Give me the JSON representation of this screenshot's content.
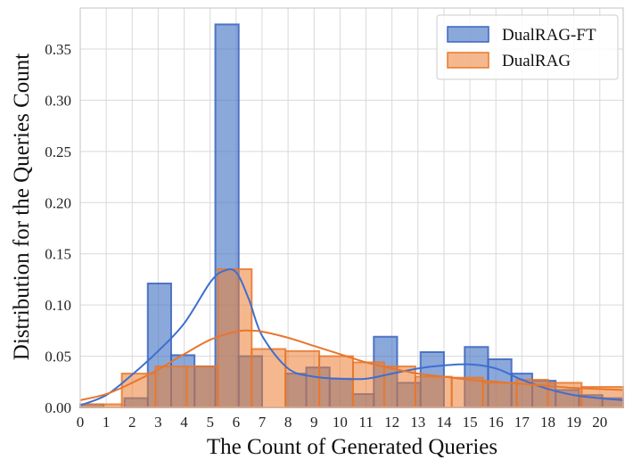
{
  "chart_data": {
    "type": "histogram",
    "xlabel": "The Count of Generated Queries",
    "ylabel": "Distribution for the Queries Count",
    "xlim": [
      0,
      20.9
    ],
    "ylim": [
      0,
      0.39
    ],
    "x_ticks": [
      0,
      1,
      2,
      3,
      4,
      5,
      6,
      7,
      8,
      9,
      10,
      11,
      12,
      13,
      14,
      15,
      16,
      17,
      18,
      19,
      20
    ],
    "x_tick_labels": [
      "0",
      "1",
      "2",
      "3",
      "4",
      "5",
      "6",
      "7",
      "8",
      "9",
      "10",
      "11",
      "12",
      "13",
      "14",
      "15",
      "16",
      "17",
      "18",
      "19",
      "20"
    ],
    "y_ticks": [
      0,
      0.05,
      0.1,
      0.15,
      0.2,
      0.25,
      0.3,
      0.35
    ],
    "y_tick_labels": [
      "0.00",
      "0.05",
      "0.10",
      "0.15",
      "0.20",
      "0.25",
      "0.30",
      "0.35"
    ],
    "grid": true,
    "legend_position": "top-right",
    "series": [
      {
        "name": "DualRAG-FT",
        "color": "#4472c4",
        "bins": [
          {
            "x0": 0.0,
            "x1": 0.9,
            "value": 0.003
          },
          {
            "x0": 1.7,
            "x1": 2.6,
            "value": 0.009
          },
          {
            "x0": 2.6,
            "x1": 3.5,
            "value": 0.121
          },
          {
            "x0": 3.5,
            "x1": 4.4,
            "value": 0.051
          },
          {
            "x0": 4.4,
            "x1": 5.2,
            "value": 0.04
          },
          {
            "x0": 5.2,
            "x1": 6.1,
            "value": 0.374
          },
          {
            "x0": 6.1,
            "x1": 7.0,
            "value": 0.05
          },
          {
            "x0": 7.9,
            "x1": 8.7,
            "value": 0.033
          },
          {
            "x0": 8.7,
            "x1": 9.6,
            "value": 0.039
          },
          {
            "x0": 9.6,
            "x1": 10.5,
            "value": 0.028
          },
          {
            "x0": 10.5,
            "x1": 11.3,
            "value": 0.013
          },
          {
            "x0": 11.3,
            "x1": 12.2,
            "value": 0.069
          },
          {
            "x0": 12.2,
            "x1": 13.1,
            "value": 0.024
          },
          {
            "x0": 13.1,
            "x1": 14.0,
            "value": 0.054
          },
          {
            "x0": 14.8,
            "x1": 15.7,
            "value": 0.059
          },
          {
            "x0": 15.7,
            "x1": 16.6,
            "value": 0.047
          },
          {
            "x0": 16.6,
            "x1": 17.4,
            "value": 0.033
          },
          {
            "x0": 17.4,
            "x1": 18.3,
            "value": 0.026
          },
          {
            "x0": 18.3,
            "x1": 19.2,
            "value": 0.017
          },
          {
            "x0": 19.2,
            "x1": 20.1,
            "value": 0.012
          },
          {
            "x0": 20.1,
            "x1": 20.9,
            "value": 0.009
          }
        ],
        "kde": [
          [
            0.0,
            0.002
          ],
          [
            1.0,
            0.012
          ],
          [
            2.0,
            0.032
          ],
          [
            3.0,
            0.055
          ],
          [
            4.0,
            0.082
          ],
          [
            5.0,
            0.122
          ],
          [
            5.5,
            0.133
          ],
          [
            6.0,
            0.132
          ],
          [
            6.5,
            0.105
          ],
          [
            7.0,
            0.07
          ],
          [
            8.0,
            0.038
          ],
          [
            9.0,
            0.03
          ],
          [
            10.0,
            0.028
          ],
          [
            11.0,
            0.028
          ],
          [
            12.0,
            0.033
          ],
          [
            13.0,
            0.038
          ],
          [
            14.0,
            0.041
          ],
          [
            15.0,
            0.042
          ],
          [
            16.0,
            0.038
          ],
          [
            17.0,
            0.027
          ],
          [
            18.0,
            0.018
          ],
          [
            19.0,
            0.012
          ],
          [
            20.0,
            0.009
          ],
          [
            20.9,
            0.007
          ]
        ]
      },
      {
        "name": "DualRAG",
        "color": "#ed7d31",
        "bins": [
          {
            "x0": 0.0,
            "x1": 1.6,
            "value": 0.003
          },
          {
            "x0": 1.6,
            "x1": 2.9,
            "value": 0.033
          },
          {
            "x0": 2.9,
            "x1": 4.1,
            "value": 0.04
          },
          {
            "x0": 4.1,
            "x1": 5.3,
            "value": 0.04
          },
          {
            "x0": 5.3,
            "x1": 6.6,
            "value": 0.135
          },
          {
            "x0": 6.6,
            "x1": 7.9,
            "value": 0.057
          },
          {
            "x0": 7.9,
            "x1": 9.2,
            "value": 0.055
          },
          {
            "x0": 9.2,
            "x1": 10.5,
            "value": 0.05
          },
          {
            "x0": 10.5,
            "x1": 11.7,
            "value": 0.044
          },
          {
            "x0": 11.7,
            "x1": 12.9,
            "value": 0.04
          },
          {
            "x0": 12.9,
            "x1": 14.3,
            "value": 0.03
          },
          {
            "x0": 14.3,
            "x1": 15.5,
            "value": 0.029
          },
          {
            "x0": 15.5,
            "x1": 16.8,
            "value": 0.024
          },
          {
            "x0": 16.8,
            "x1": 18.0,
            "value": 0.027
          },
          {
            "x0": 18.0,
            "x1": 19.3,
            "value": 0.024
          },
          {
            "x0": 19.3,
            "x1": 20.9,
            "value": 0.02
          }
        ],
        "kde": [
          [
            0.0,
            0.007
          ],
          [
            1.0,
            0.013
          ],
          [
            2.0,
            0.024
          ],
          [
            3.0,
            0.037
          ],
          [
            4.0,
            0.052
          ],
          [
            5.0,
            0.066
          ],
          [
            6.0,
            0.074
          ],
          [
            6.5,
            0.075
          ],
          [
            7.0,
            0.074
          ],
          [
            8.0,
            0.068
          ],
          [
            9.0,
            0.06
          ],
          [
            10.0,
            0.052
          ],
          [
            11.0,
            0.044
          ],
          [
            12.0,
            0.038
          ],
          [
            13.0,
            0.033
          ],
          [
            14.0,
            0.03
          ],
          [
            15.0,
            0.027
          ],
          [
            16.0,
            0.025
          ],
          [
            17.0,
            0.023
          ],
          [
            18.0,
            0.021
          ],
          [
            19.0,
            0.019
          ],
          [
            20.0,
            0.018
          ],
          [
            20.9,
            0.017
          ]
        ]
      }
    ]
  }
}
